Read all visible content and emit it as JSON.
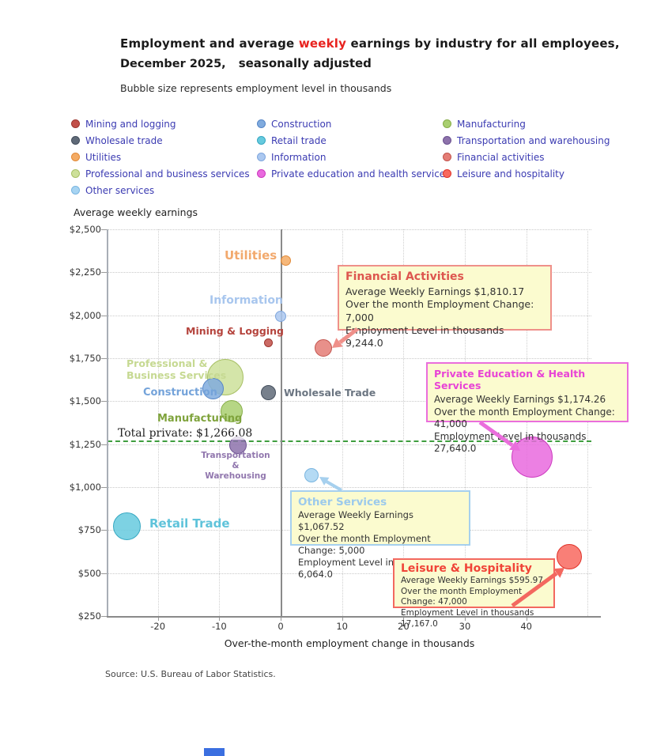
{
  "title": {
    "line1a": "Employment and average ",
    "weekly": "weekly",
    "line1b": " earnings by industry for all employees,",
    "line2a": "December 2025,",
    "line2b": "seasonally adjusted",
    "subtitle": "Bubble size represents employment level in thousands"
  },
  "legend": {
    "text_color": "#3b3bb2",
    "items": [
      {
        "label": "Mining and logging",
        "color": "#c25049",
        "border": "#9e362f"
      },
      {
        "label": "Wholesale trade",
        "color": "#5f6a78",
        "border": "#434e5c"
      },
      {
        "label": "Utilities",
        "color": "#f4ab64",
        "border": "#e18a38"
      },
      {
        "label": "Professional and business services",
        "color": "#cde09a",
        "border": "#a9c167"
      },
      {
        "label": "Other services",
        "color": "#a7d4f2",
        "border": "#79b5e0"
      },
      {
        "label": "Construction",
        "color": "#80abde",
        "border": "#5585c6"
      },
      {
        "label": "Retail trade",
        "color": "#66cade",
        "border": "#37a8c2"
      },
      {
        "label": "Information",
        "color": "#abc8f0",
        "border": "#7fa6dd"
      },
      {
        "label": "Private education and health services",
        "color": "#e96ade",
        "border": "#cc3bbf"
      },
      {
        "label": "Manufacturing",
        "color": "#a9cf70",
        "border": "#86ad48"
      },
      {
        "label": "Transportation and warehousing",
        "color": "#8d72ab",
        "border": "#6b5190"
      },
      {
        "label": "Financial activities",
        "color": "#e47d76",
        "border": "#c2544d"
      },
      {
        "label": "Leisure and hospitality",
        "color": "#f8695f",
        "border": "#e03329"
      }
    ]
  },
  "chart_data": {
    "type": "scatter",
    "title": "Employment and average weekly earnings by industry for all employees, December 2025, seasonally adjusted",
    "xlabel": "Over-the-month employment change in thousands",
    "ylabel": "Average weekly earnings",
    "xlim": [
      -28.2,
      50.6
    ],
    "ylim": [
      250,
      2500
    ],
    "grid": true,
    "x_ticks": [
      -20,
      -10,
      0,
      10,
      20,
      30,
      40
    ],
    "x_gridlines": [
      -20,
      -10,
      10,
      20,
      30,
      40,
      50
    ],
    "y_ticks": [
      {
        "value": 2500,
        "label": "$2,500"
      },
      {
        "value": 2250,
        "label": "$2,250"
      },
      {
        "value": 2000,
        "label": "$2,000"
      },
      {
        "value": 1750,
        "label": "$1,750"
      },
      {
        "value": 1500,
        "label": "$1,500"
      },
      {
        "value": 1250,
        "label": "$1,250"
      },
      {
        "value": 1000,
        "label": "$1,000"
      },
      {
        "value": 750,
        "label": "$750"
      },
      {
        "value": 500,
        "label": "$500"
      },
      {
        "value": 250,
        "label": "$250"
      }
    ],
    "reference_line": {
      "label": "Total private: $1,266.08",
      "value": 1266.08,
      "color": "#3f9e3f"
    },
    "points": [
      {
        "id": "mining-logging",
        "label": "Mining & Logging",
        "x": -2,
        "y": 1838,
        "r": 5.5,
        "color": "#c25049",
        "border": "#9e362f",
        "label_color": "#b5443d"
      },
      {
        "id": "utilities",
        "label": "Utilities",
        "x": 0.8,
        "y": 2320,
        "r": 6.5,
        "color": "#f4ab64",
        "border": "#e18a38",
        "label_color": "#f2a96d"
      },
      {
        "id": "information",
        "label": "Information",
        "x": 0,
        "y": 1992,
        "r": 7,
        "color": "#abc8f0",
        "border": "#7fa6dd",
        "label_color": "#a8c6ee"
      },
      {
        "id": "financial-activities",
        "label": "",
        "x": 7,
        "y": 1810.17,
        "r": 11,
        "color": "#e47d76",
        "border": "#c2544d",
        "label_color": "#dd564f"
      },
      {
        "id": "professional-business-services",
        "label": "Professional &\nBusiness Services",
        "x": -9,
        "y": 1640,
        "r": 23,
        "color": "#cde09a",
        "border": "#a9c167",
        "label_color": "#c6d992"
      },
      {
        "id": "construction",
        "label": "Construction",
        "x": -11,
        "y": 1573,
        "r": 13.5,
        "color": "#80abde",
        "border": "#5585c6",
        "label_color": "#74a3da"
      },
      {
        "id": "wholesale-trade",
        "label": "Wholesale Trade",
        "x": -2,
        "y": 1550,
        "r": 9.5,
        "color": "#5f6a78",
        "border": "#434e5c",
        "label_color": "#6b7581"
      },
      {
        "id": "manufacturing",
        "label": "Manufacturing",
        "x": -8,
        "y": 1440,
        "r": 14,
        "color": "#a9cf70",
        "border": "#86ad48",
        "label_color": "#7fa33c"
      },
      {
        "id": "transportation-warehousing",
        "label": "Transportation &\nWarehousing",
        "x": -7,
        "y": 1246,
        "r": 11,
        "color": "#8d72ab",
        "border": "#6b5190",
        "label_color": "#9177ae"
      },
      {
        "id": "other-services",
        "label": "",
        "x": 5,
        "y": 1067.52,
        "r": 9,
        "color": "#a7d4f2",
        "border": "#79b5e0",
        "label_color": "#9ccaec"
      },
      {
        "id": "retail-trade",
        "label": "Retail Trade",
        "x": -25,
        "y": 770,
        "r": 17.5,
        "color": "#66cade",
        "border": "#37a8c2",
        "label_color": "#5fc3da"
      },
      {
        "id": "private-education-health",
        "label": "",
        "x": 41,
        "y": 1174.26,
        "r": 26,
        "color": "#e96ade",
        "border": "#cc3bbf",
        "label_color": "#e843d6"
      },
      {
        "id": "leisure-hospitality",
        "label": "",
        "x": 47,
        "y": 595.97,
        "r": 16,
        "color": "#f8695f",
        "border": "#e03329",
        "label_color": "#f04438"
      }
    ]
  },
  "annotations": [
    {
      "id": "financial-activities",
      "title": "Financial Activities",
      "accent": "#ef908a",
      "title_color": "#dd564f",
      "lines": [
        "Average Weekly Earnings $1,810.17",
        "Over the month Employment Change:  7,000",
        "Employment Level in thousands 9,244.0"
      ]
    },
    {
      "id": "private-education-health",
      "title": "Private Education & Health Services",
      "accent": "#ea6edc",
      "title_color": "#e843d6",
      "lines": [
        "Average Weekly Earnings $1,174.26",
        "Over the month Employment Change:  41,000",
        "Employment Level in thousands 27,640.0"
      ]
    },
    {
      "id": "other-services",
      "title": "Other Services",
      "accent": "#a6d0ee",
      "title_color": "#9ccaec",
      "lines": [
        "Average Weekly Earnings $1,067.52",
        "Over the month Employment Change:  5,000",
        "Employment Level in thousands 6,064.0"
      ]
    },
    {
      "id": "leisure-hospitality",
      "title": "Leisure & Hospitality",
      "accent": "#f3685f",
      "title_color": "#f04438",
      "lines": [
        "Average Weekly Earnings $595.97",
        "Over the month Employment Change:  47,000",
        "Employment Level in thousands 17,167.0"
      ]
    }
  ],
  "source": "Source: U.S. Bureau of Labor Statistics."
}
